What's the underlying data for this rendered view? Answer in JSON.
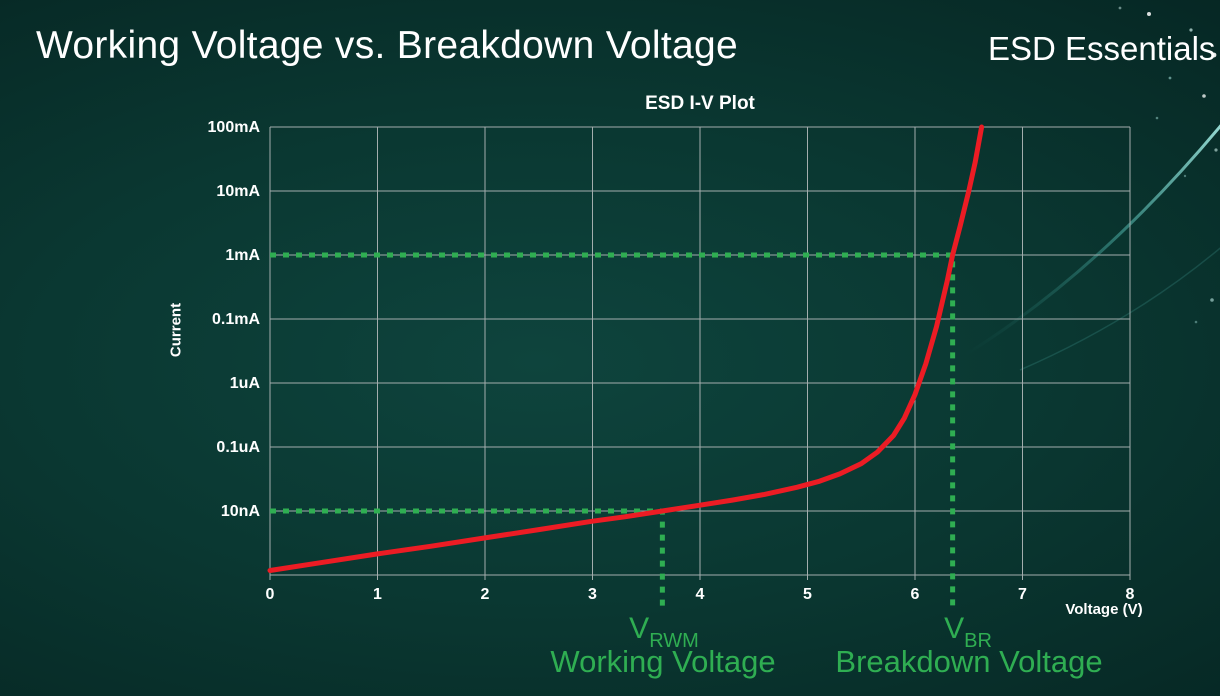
{
  "header": {
    "title": "Working Voltage vs. Breakdown Voltage",
    "brand": "ESD Essentials"
  },
  "colors": {
    "background_dark": "#031b1a",
    "accent_green": "#2fae52",
    "curve_red": "#ec1c24",
    "grid_gray": "#a3adad",
    "text_white": "#ffffff",
    "decor_teal": "#aef2ea"
  },
  "chart_data": {
    "type": "line",
    "title": "ESD I-V Plot",
    "xlabel": "Voltage (V)",
    "ylabel": "Current",
    "x_range": [
      0,
      8
    ],
    "x_ticks": [
      "0",
      "1",
      "2",
      "3",
      "4",
      "5",
      "6",
      "7",
      "8"
    ],
    "y_ticks_top_to_bottom": [
      "100mA",
      "10mA",
      "1mA",
      "0.1mA",
      "1uA",
      "0.1uA",
      "10nA"
    ],
    "y_axis_note": "log-style current axis, one gridline per labeled tick; bottom gridline unlabeled",
    "grid": true,
    "legend": "none",
    "series": [
      {
        "name": "ESD device I-V curve",
        "color": "#ec1c24",
        "points_v_row_note": "pairs of [voltage V, y-row] where row 0 = 100mA gridline, row 2 = 1mA, row 6 = 10nA, row 7 = bottom axis",
        "points_v_row": [
          [
            0,
            6.93
          ],
          [
            0.5,
            6.8
          ],
          [
            1,
            6.67
          ],
          [
            1.5,
            6.55
          ],
          [
            2,
            6.42
          ],
          [
            2.5,
            6.29
          ],
          [
            3,
            6.16
          ],
          [
            3.3,
            6.09
          ],
          [
            3.65,
            6.0
          ],
          [
            4,
            5.91
          ],
          [
            4.3,
            5.83
          ],
          [
            4.6,
            5.74
          ],
          [
            4.9,
            5.63
          ],
          [
            5.1,
            5.54
          ],
          [
            5.3,
            5.42
          ],
          [
            5.5,
            5.26
          ],
          [
            5.65,
            5.08
          ],
          [
            5.8,
            4.82
          ],
          [
            5.9,
            4.55
          ],
          [
            6.0,
            4.18
          ],
          [
            6.1,
            3.7
          ],
          [
            6.2,
            3.12
          ],
          [
            6.3,
            2.4
          ],
          [
            6.35,
            2.0
          ],
          [
            6.42,
            1.55
          ],
          [
            6.5,
            1.0
          ],
          [
            6.56,
            0.55
          ],
          [
            6.62,
            0.0
          ]
        ]
      }
    ],
    "key_points": [
      {
        "voltage": 3.65,
        "current": "10nA",
        "meaning": "working voltage point"
      },
      {
        "voltage": 6.35,
        "current": "1mA",
        "meaning": "breakdown voltage point"
      }
    ],
    "annotations": {
      "working": {
        "voltage": 3.65,
        "row": 6,
        "current_label": "10nA",
        "symbol": "V",
        "subscript": "RWM",
        "caption": "Working Voltage"
      },
      "breakdown": {
        "voltage": 6.35,
        "row": 2,
        "current_label": "1mA",
        "symbol": "V",
        "subscript": "BR",
        "caption": "Breakdown Voltage"
      }
    }
  }
}
